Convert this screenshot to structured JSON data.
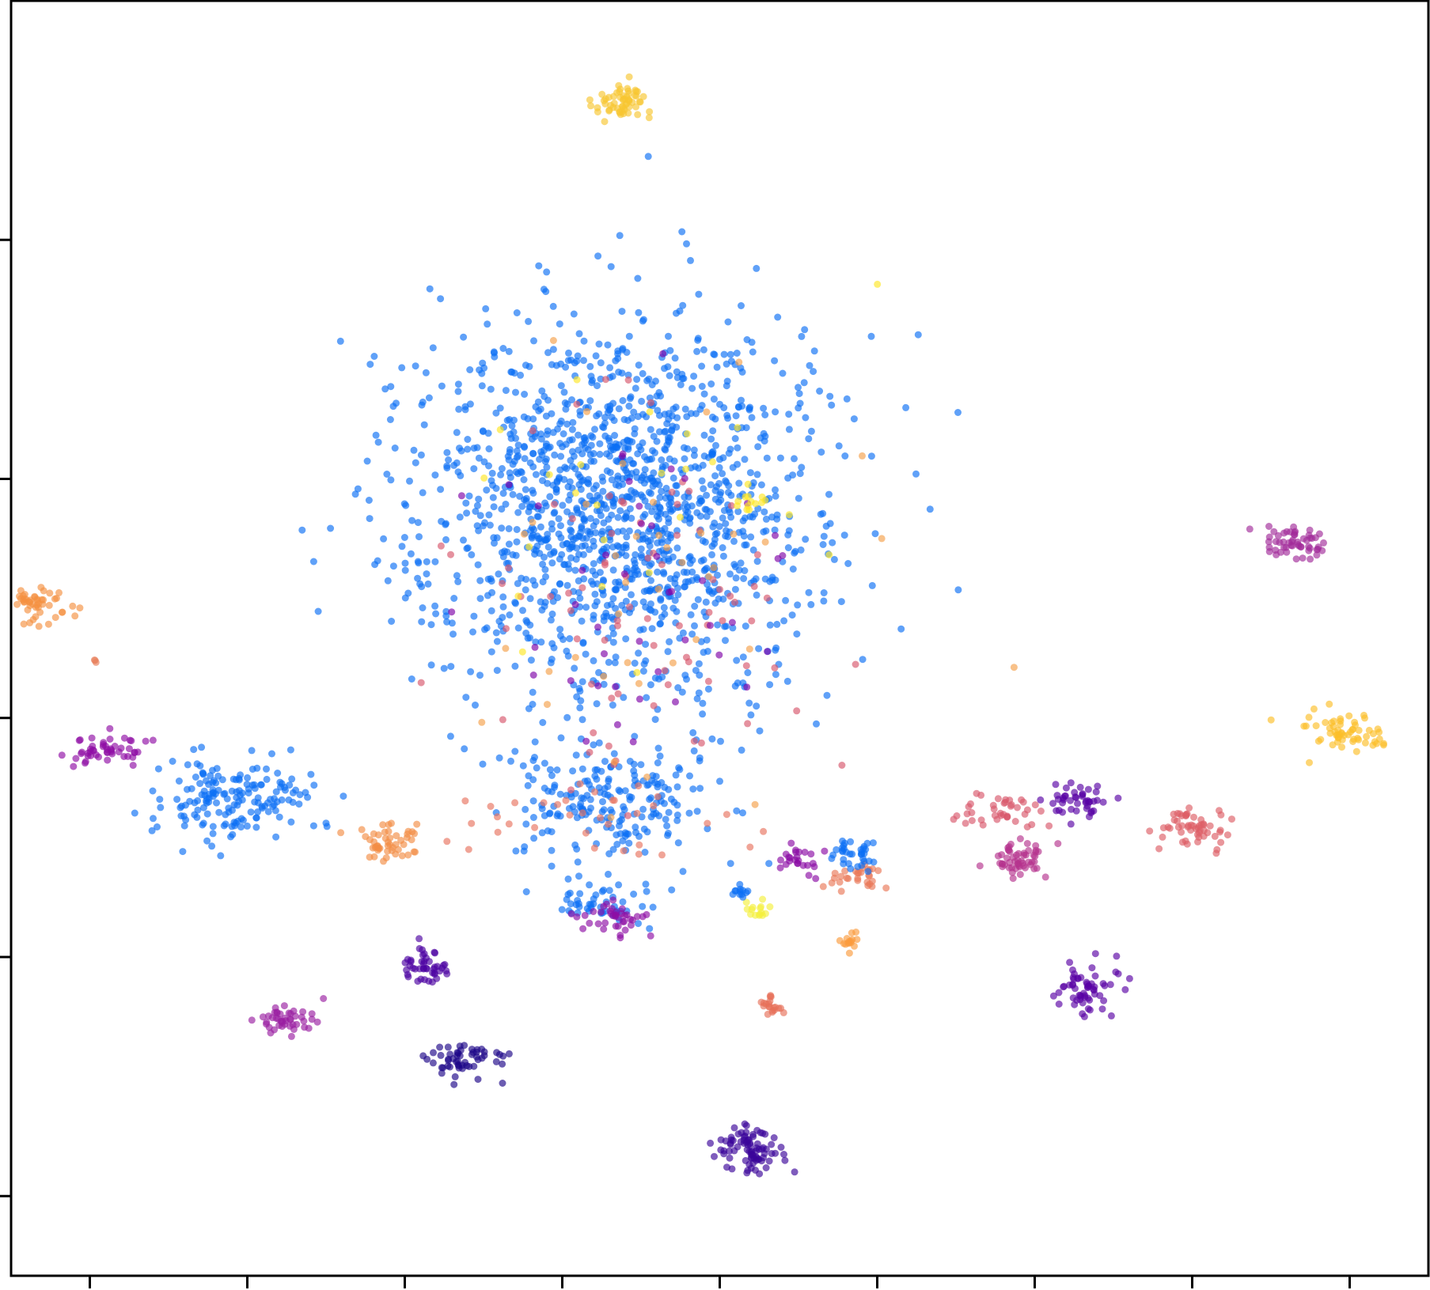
{
  "chart_data": {
    "type": "scatter",
    "title": "",
    "xlabel": "",
    "ylabel": "",
    "grid": false,
    "legend": "none",
    "xlim": [
      -40,
      50
    ],
    "ylim": [
      -36,
      44
    ],
    "x_ticks": [
      -35,
      -25,
      -15,
      -5,
      5,
      15,
      25,
      35,
      45
    ],
    "y_ticks": [
      -31,
      -16,
      -1,
      14,
      29
    ],
    "tick_labels_shown": false,
    "marker_alpha": 0.65,
    "clusters": [
      {
        "color": "#f7c631",
        "center": [
          -1.3,
          37.5
        ],
        "spread": [
          0.9,
          0.7
        ],
        "count": 60
      },
      {
        "color": "#f59140",
        "center": [
          -38.5,
          6.0
        ],
        "spread": [
          1.1,
          0.6
        ],
        "count": 55
      },
      {
        "color": "#e8805a",
        "center": [
          -34.3,
          2.6
        ],
        "spread": [
          0.3,
          0.1
        ],
        "count": 3
      },
      {
        "color": "#8f0da4",
        "center": [
          -33.7,
          -3.0
        ],
        "spread": [
          1.3,
          0.5
        ],
        "count": 50
      },
      {
        "color": "#a22b9a",
        "center": [
          41.6,
          9.9
        ],
        "spread": [
          1.0,
          0.5
        ],
        "count": 55
      },
      {
        "color": "#fcbf28",
        "center": [
          44.8,
          -2.0
        ],
        "spread": [
          1.2,
          0.6
        ],
        "count": 60
      },
      {
        "color": "#f28d45",
        "center": [
          -16.2,
          -8.9
        ],
        "spread": [
          0.9,
          0.6
        ],
        "count": 50
      },
      {
        "color": "#4c02a1",
        "center": [
          -13.8,
          -16.5
        ],
        "spread": [
          0.8,
          0.5
        ],
        "count": 45
      },
      {
        "color": "#9a1ea2",
        "center": [
          -22.4,
          -20.0
        ],
        "spread": [
          0.9,
          0.5
        ],
        "count": 45
      },
      {
        "color": "#1c0587",
        "center": [
          -11.0,
          -22.5
        ],
        "spread": [
          1.3,
          0.6
        ],
        "count": 55
      },
      {
        "color": "#3b049a",
        "center": [
          6.8,
          -28.0
        ],
        "spread": [
          1.1,
          0.8
        ],
        "count": 85
      },
      {
        "color": "#e77059",
        "center": [
          8.3,
          -19.0
        ],
        "spread": [
          0.5,
          0.4
        ],
        "count": 20
      },
      {
        "color": "#fb9b3e",
        "center": [
          13.0,
          -15.0
        ],
        "spread": [
          0.4,
          0.4
        ],
        "count": 15
      },
      {
        "color": "#5901a5",
        "center": [
          28.2,
          -18.0
        ],
        "spread": [
          0.9,
          0.7
        ],
        "count": 60
      },
      {
        "color": "#5701a4",
        "center": [
          27.5,
          -6.2
        ],
        "spread": [
          0.9,
          0.5
        ],
        "count": 45
      },
      {
        "color": "#dd5e66",
        "center": [
          35.2,
          -8.0
        ],
        "spread": [
          1.0,
          0.6
        ],
        "count": 55
      },
      {
        "color": "#b6338d",
        "center": [
          24.0,
          -9.9
        ],
        "spread": [
          1.0,
          0.6
        ],
        "count": 55
      },
      {
        "color": "#d8576b",
        "center": [
          23.0,
          -6.8
        ],
        "spread": [
          1.2,
          0.6
        ],
        "count": 40
      },
      {
        "color": "#e97858",
        "center": [
          13.8,
          -11.0
        ],
        "spread": [
          1.0,
          0.5
        ],
        "count": 30
      },
      {
        "color": "#0b6ef5",
        "center": [
          13.8,
          -9.5
        ],
        "spread": [
          0.6,
          0.5
        ],
        "count": 35
      },
      {
        "color": "#f4f03c",
        "center": [
          7.4,
          -13.0
        ],
        "spread": [
          0.4,
          0.3
        ],
        "count": 15
      },
      {
        "color": "#0b6ef5",
        "center": [
          6.5,
          -11.8
        ],
        "spread": [
          0.4,
          0.3
        ],
        "count": 12
      },
      {
        "color": "#0b6ef5",
        "center": [
          -2.5,
          -12.5
        ],
        "spread": [
          1.5,
          0.6
        ],
        "count": 45
      },
      {
        "color": "#8e0ea4",
        "center": [
          -1.5,
          -13.5
        ],
        "spread": [
          1.2,
          0.6
        ],
        "count": 40
      },
      {
        "color": "#8b0aa5",
        "center": [
          9.8,
          -9.8
        ],
        "spread": [
          0.6,
          0.5
        ],
        "count": 25
      },
      {
        "color": "#0b6ef5",
        "center": [
          -26.0,
          -6.0
        ],
        "spread": [
          2.5,
          1.4
        ],
        "count": 170
      },
      {
        "color": "#0b6ef5",
        "center": [
          -1.5,
          12.3
        ],
        "spread": [
          6.5,
          5.8
        ],
        "count": 1500
      },
      {
        "color": "#0b6ef5",
        "center": [
          -2.0,
          -6.0
        ],
        "spread": [
          3.0,
          2.2
        ],
        "count": 220
      },
      {
        "color": "#d7566c",
        "center": [
          0.0,
          6.0
        ],
        "spread": [
          6.0,
          6.0
        ],
        "count": 80
      },
      {
        "color": "#f4a04a",
        "center": [
          0.0,
          6.0
        ],
        "spread": [
          6.0,
          6.0
        ],
        "count": 40
      },
      {
        "color": "#fde725",
        "center": [
          -1.0,
          12.0
        ],
        "spread": [
          7.0,
          5.0
        ],
        "count": 25
      },
      {
        "color": "#7e03a8",
        "center": [
          0.0,
          6.0
        ],
        "spread": [
          5.5,
          5.5
        ],
        "count": 45
      },
      {
        "color": "#e8735f",
        "center": [
          -3.5,
          -7.5
        ],
        "spread": [
          4.0,
          1.5
        ],
        "count": 35
      },
      {
        "color": "#fde725",
        "center": [
          7.0,
          12.5
        ],
        "spread": [
          0.5,
          0.3
        ],
        "count": 12
      }
    ]
  }
}
